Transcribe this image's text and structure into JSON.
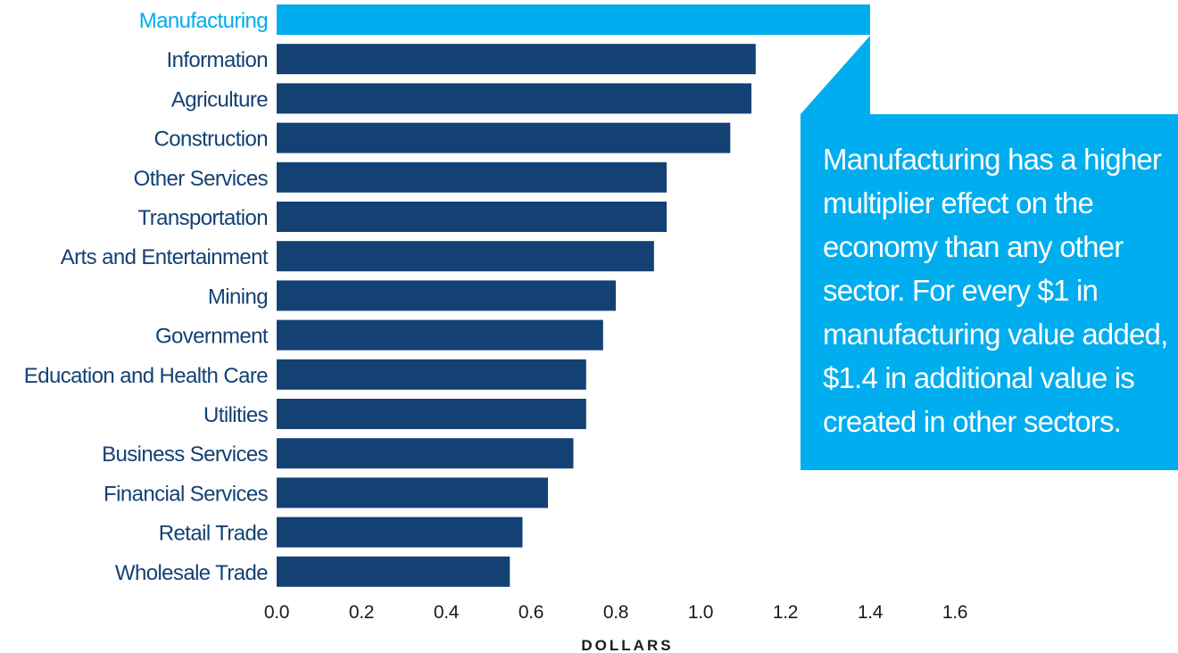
{
  "chart_data": {
    "type": "bar",
    "orientation": "horizontal",
    "categories": [
      "Manufacturing",
      "Information",
      "Agriculture",
      "Construction",
      "Other Services",
      "Transportation",
      "Arts and Entertainment",
      "Mining",
      "Government",
      "Education and Health Care",
      "Utilities",
      "Business Services",
      "Financial Services",
      "Retail Trade",
      "Wholesale Trade"
    ],
    "values": [
      1.4,
      1.13,
      1.12,
      1.07,
      0.92,
      0.92,
      0.89,
      0.8,
      0.77,
      0.73,
      0.73,
      0.7,
      0.64,
      0.58,
      0.55
    ],
    "highlight_category": "Manufacturing",
    "xlabel": "DOLLARS",
    "ylabel": "",
    "title": "",
    "xlim": [
      0,
      1.6
    ],
    "xticks": [
      "0.0",
      "0.2",
      "0.4",
      "0.6",
      "0.8",
      "1.0",
      "1.2",
      "1.4",
      "1.6"
    ],
    "grid": false,
    "legend": "none"
  },
  "callout": {
    "text": "Manufacturing has a higher multiplier effect on the economy than any other sector. For every $1 in manufacturing value added, $1.4 in additional value is created in other sectors."
  },
  "colors": {
    "bar": "#134174",
    "highlight": "#00adee",
    "label": "#134174",
    "callout_bg": "#00adee",
    "callout_text": "#ffffff"
  }
}
